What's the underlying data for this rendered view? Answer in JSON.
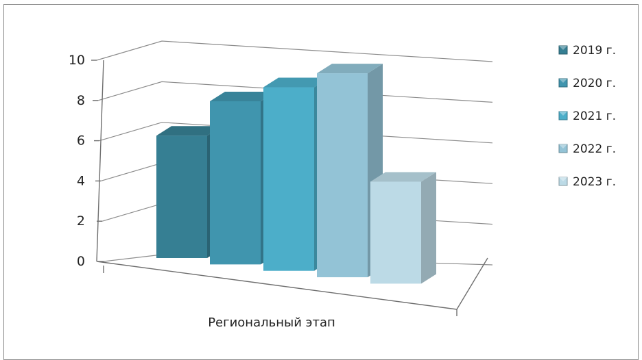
{
  "chart_data": {
    "type": "bar",
    "title": "",
    "xlabel": "",
    "ylabel": "",
    "categories": [
      "Региональный этап"
    ],
    "category_label": "Региональный этап",
    "ylim": [
      0,
      10
    ],
    "yticks": [
      "0",
      "2",
      "4",
      "6",
      "8",
      "10"
    ],
    "grid": true,
    "legend_position": "right",
    "series": [
      {
        "name": "2019 г.",
        "values": [
          6
        ],
        "color": "#367f93"
      },
      {
        "name": "2020 г.",
        "values": [
          8
        ],
        "color": "#4095ae"
      },
      {
        "name": "2021 г.",
        "values": [
          9
        ],
        "color": "#4caec9"
      },
      {
        "name": "2022 г.",
        "values": [
          10
        ],
        "color": "#93c3d6"
      },
      {
        "name": "2023 г.",
        "values": [
          5
        ],
        "color": "#bcdae6"
      }
    ]
  }
}
